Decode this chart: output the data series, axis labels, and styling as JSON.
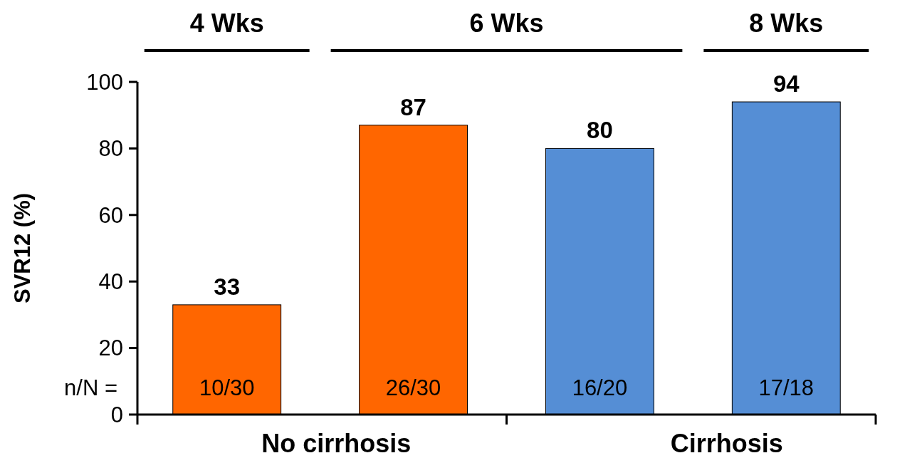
{
  "chart_data": {
    "type": "bar",
    "ylabel": "SVR12 (%)",
    "categories": [
      null,
      null,
      null,
      null
    ],
    "values": [
      33,
      87,
      80,
      94
    ],
    "colors": [
      "#ff6600",
      "#ff6600",
      "#558ed5",
      "#558ed5"
    ],
    "ylim": [
      0,
      100
    ],
    "yticks": [
      0,
      20,
      40,
      60,
      80,
      100
    ],
    "data_labels": true,
    "annotations": [
      "4 Wks",
      "6 Wks",
      "8 Wks",
      "No cirrhosis",
      "Cirrhosis",
      "n/N =",
      "10/30",
      "26/30",
      "16/20",
      "17/18"
    ]
  }
}
